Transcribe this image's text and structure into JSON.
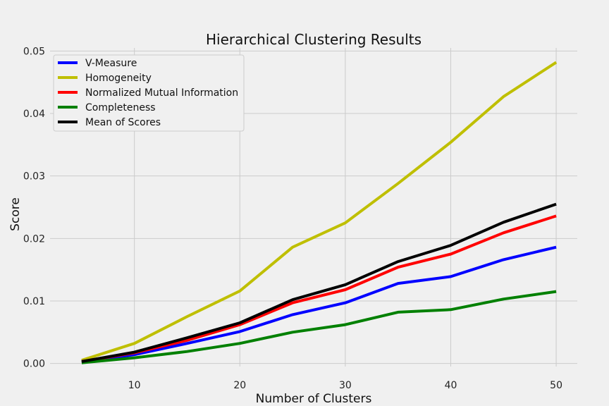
{
  "chart_data": {
    "type": "line",
    "title": "Hierarchical Clustering Results",
    "xlabel": "Number of Clusters",
    "ylabel": "Score",
    "x": [
      5,
      10,
      15,
      20,
      25,
      30,
      35,
      40,
      45,
      50
    ],
    "xlim": [
      2,
      52
    ],
    "ylim": [
      -0.0005,
      0.0505
    ],
    "xticks": [
      10,
      20,
      30,
      40,
      50
    ],
    "yticks": [
      0.0,
      0.01,
      0.02,
      0.03,
      0.04,
      0.05
    ],
    "xtick_labels": [
      "10",
      "20",
      "30",
      "40",
      "50"
    ],
    "ytick_labels": [
      "0.00",
      "0.01",
      "0.02",
      "0.03",
      "0.04",
      "0.05"
    ],
    "grid": true,
    "legend_position": "top-left",
    "series": [
      {
        "name": "V-Measure",
        "color": "#0000ff",
        "values": [
          0.0002,
          0.0014,
          0.0032,
          0.0051,
          0.0078,
          0.0097,
          0.0128,
          0.0139,
          0.0166,
          0.0186
        ]
      },
      {
        "name": "Homogeneity",
        "color": "#bfbf00",
        "values": [
          0.0005,
          0.0032,
          0.0075,
          0.0116,
          0.0186,
          0.0225,
          0.0288,
          0.0354,
          0.0427,
          0.0482
        ]
      },
      {
        "name": "Normalized Mutual Information",
        "color": "#ff0000",
        "values": [
          0.0003,
          0.0017,
          0.0037,
          0.0062,
          0.0097,
          0.0118,
          0.0154,
          0.0175,
          0.0209,
          0.0236
        ]
      },
      {
        "name": "Completeness",
        "color": "#008000",
        "values": [
          0.0001,
          0.0009,
          0.0019,
          0.0032,
          0.005,
          0.0062,
          0.0082,
          0.0086,
          0.0103,
          0.0115
        ]
      },
      {
        "name": "Mean of Scores",
        "color": "#000000",
        "values": [
          0.0003,
          0.0018,
          0.0041,
          0.0065,
          0.0102,
          0.0126,
          0.0163,
          0.0189,
          0.0226,
          0.0255
        ]
      }
    ]
  }
}
